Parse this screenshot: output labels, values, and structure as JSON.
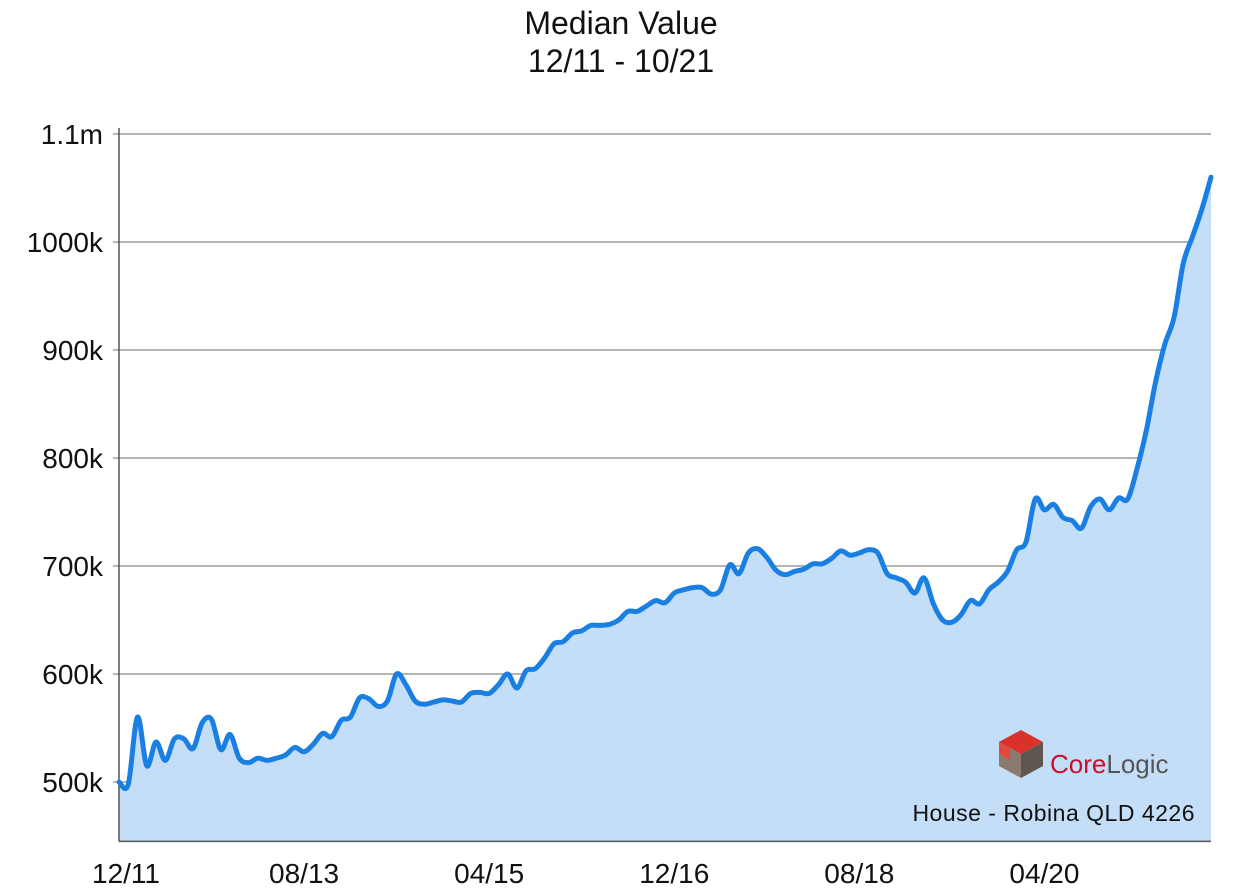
{
  "chart_data": {
    "type": "area",
    "title": "Median Value",
    "subtitle": "12/11 - 10/21",
    "caption": "House - Robina QLD 4226",
    "brand": {
      "name_part1": "Core",
      "name_part2": "Logic",
      "color_part1": "#c8102e",
      "color_part2": "#555555"
    },
    "yticks": [
      {
        "value": 500000,
        "label": "500k"
      },
      {
        "value": 600000,
        "label": "600k"
      },
      {
        "value": 700000,
        "label": "700k"
      },
      {
        "value": 800000,
        "label": "800k"
      },
      {
        "value": 900000,
        "label": "900k"
      },
      {
        "value": 1000000,
        "label": "1000k"
      },
      {
        "value": 1100000,
        "label": "1.1m"
      }
    ],
    "ylim": [
      445000,
      1100000
    ],
    "xticks": [
      {
        "month": "2011-12",
        "label": "12/11"
      },
      {
        "month": "2013-08",
        "label": "08/13"
      },
      {
        "month": "2015-04",
        "label": "04/15"
      },
      {
        "month": "2016-12",
        "label": "12/16"
      },
      {
        "month": "2018-08",
        "label": "08/18"
      },
      {
        "month": "2020-04",
        "label": "04/20"
      }
    ],
    "xlim": [
      "2011-12",
      "2021-10"
    ],
    "grid": "horizontal",
    "line_color": "#1a7fe3",
    "fill_color": "#c4def7",
    "series": [
      {
        "points": [
          [
            "2011-12",
            500000
          ],
          [
            "2012-01",
            498000
          ],
          [
            "2012-02",
            560000
          ],
          [
            "2012-03",
            515000
          ],
          [
            "2012-04",
            537000
          ],
          [
            "2012-05",
            520000
          ],
          [
            "2012-06",
            540000
          ],
          [
            "2012-07",
            540000
          ],
          [
            "2012-08",
            531000
          ],
          [
            "2012-09",
            555000
          ],
          [
            "2012-10",
            558000
          ],
          [
            "2012-11",
            530000
          ],
          [
            "2012-12",
            544000
          ],
          [
            "2013-01",
            522000
          ],
          [
            "2013-02",
            518000
          ],
          [
            "2013-03",
            522000
          ],
          [
            "2013-04",
            520000
          ],
          [
            "2013-05",
            522000
          ],
          [
            "2013-06",
            525000
          ],
          [
            "2013-07",
            532000
          ],
          [
            "2013-08",
            528000
          ],
          [
            "2013-09",
            535000
          ],
          [
            "2013-10",
            545000
          ],
          [
            "2013-11",
            542000
          ],
          [
            "2013-12",
            557000
          ],
          [
            "2014-01",
            560000
          ],
          [
            "2014-02",
            578000
          ],
          [
            "2014-03",
            577000
          ],
          [
            "2014-04",
            570000
          ],
          [
            "2014-05",
            575000
          ],
          [
            "2014-06",
            600000
          ],
          [
            "2014-07",
            590000
          ],
          [
            "2014-08",
            575000
          ],
          [
            "2014-09",
            572000
          ],
          [
            "2014-10",
            574000
          ],
          [
            "2014-11",
            576000
          ],
          [
            "2014-12",
            575000
          ],
          [
            "2015-01",
            574000
          ],
          [
            "2015-02",
            582000
          ],
          [
            "2015-03",
            583000
          ],
          [
            "2015-04",
            582000
          ],
          [
            "2015-05",
            590000
          ],
          [
            "2015-06",
            600000
          ],
          [
            "2015-07",
            587000
          ],
          [
            "2015-08",
            603000
          ],
          [
            "2015-09",
            605000
          ],
          [
            "2015-10",
            615000
          ],
          [
            "2015-11",
            628000
          ],
          [
            "2015-12",
            630000
          ],
          [
            "2016-01",
            638000
          ],
          [
            "2016-02",
            640000
          ],
          [
            "2016-03",
            645000
          ],
          [
            "2016-04",
            645000
          ],
          [
            "2016-05",
            646000
          ],
          [
            "2016-06",
            650000
          ],
          [
            "2016-07",
            658000
          ],
          [
            "2016-08",
            658000
          ],
          [
            "2016-09",
            663000
          ],
          [
            "2016-10",
            668000
          ],
          [
            "2016-11",
            666000
          ],
          [
            "2016-12",
            675000
          ],
          [
            "2017-01",
            678000
          ],
          [
            "2017-02",
            680000
          ],
          [
            "2017-03",
            680000
          ],
          [
            "2017-04",
            674000
          ],
          [
            "2017-05",
            678000
          ],
          [
            "2017-06",
            701000
          ],
          [
            "2017-07",
            693000
          ],
          [
            "2017-08",
            712000
          ],
          [
            "2017-09",
            716000
          ],
          [
            "2017-10",
            708000
          ],
          [
            "2017-11",
            696000
          ],
          [
            "2017-12",
            692000
          ],
          [
            "2018-01",
            695000
          ],
          [
            "2018-02",
            697000
          ],
          [
            "2018-03",
            702000
          ],
          [
            "2018-04",
            702000
          ],
          [
            "2018-05",
            707000
          ],
          [
            "2018-06",
            714000
          ],
          [
            "2018-07",
            710000
          ],
          [
            "2018-08",
            712000
          ],
          [
            "2018-09",
            715000
          ],
          [
            "2018-10",
            712000
          ],
          [
            "2018-11",
            693000
          ],
          [
            "2018-12",
            689000
          ],
          [
            "2019-01",
            685000
          ],
          [
            "2019-02",
            675000
          ],
          [
            "2019-03",
            689000
          ],
          [
            "2019-04",
            665000
          ],
          [
            "2019-05",
            650000
          ],
          [
            "2019-06",
            648000
          ],
          [
            "2019-07",
            655000
          ],
          [
            "2019-08",
            668000
          ],
          [
            "2019-09",
            665000
          ],
          [
            "2019-10",
            678000
          ],
          [
            "2019-11",
            685000
          ],
          [
            "2019-12",
            695000
          ],
          [
            "2020-01",
            715000
          ],
          [
            "2020-02",
            722000
          ],
          [
            "2020-03",
            762000
          ],
          [
            "2020-04",
            752000
          ],
          [
            "2020-05",
            757000
          ],
          [
            "2020-06",
            745000
          ],
          [
            "2020-07",
            742000
          ],
          [
            "2020-08",
            735000
          ],
          [
            "2020-09",
            755000
          ],
          [
            "2020-10",
            762000
          ],
          [
            "2020-11",
            752000
          ],
          [
            "2020-12",
            763000
          ],
          [
            "2021-01",
            762000
          ],
          [
            "2021-02",
            790000
          ],
          [
            "2021-03",
            825000
          ],
          [
            "2021-04",
            870000
          ],
          [
            "2021-05",
            905000
          ],
          [
            "2021-06",
            930000
          ],
          [
            "2021-07",
            980000
          ],
          [
            "2021-08",
            1005000
          ],
          [
            "2021-09",
            1030000
          ],
          [
            "2021-10",
            1060000
          ]
        ]
      }
    ]
  }
}
